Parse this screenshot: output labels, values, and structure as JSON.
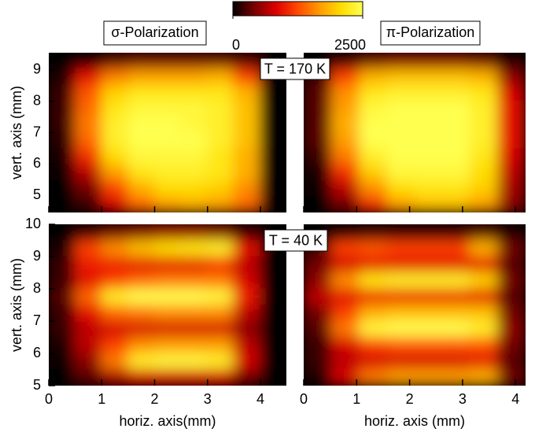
{
  "colorbar": {
    "clim": [
      0,
      2500
    ],
    "ticks": [
      0,
      2500
    ],
    "colors": [
      "#000000",
      "#7a0000",
      "#dd0000",
      "#ff4a00",
      "#ff9a00",
      "#ffdc00",
      "#ffff50"
    ]
  },
  "annotations": [
    "T = 170 K",
    "T = 40 K"
  ],
  "chart_data": [
    {
      "type": "heatmap",
      "title": "σ-Polarization",
      "ylabel": "vert. axis (mm)",
      "xlim": [
        0,
        4.49
      ],
      "ylim": [
        4.45,
        9.55
      ],
      "xticks": [
        0,
        1,
        2,
        3,
        4
      ],
      "yticks": [
        5,
        6,
        7,
        8,
        9
      ],
      "z": [
        [
          0,
          100,
          300,
          400,
          400,
          400,
          400,
          300,
          0
        ],
        [
          100,
          900,
          1500,
          1700,
          1700,
          1700,
          1800,
          1200,
          0
        ],
        [
          200,
          1300,
          2000,
          2200,
          2200,
          2200,
          2200,
          1800,
          0
        ],
        [
          200,
          1400,
          2200,
          2400,
          2400,
          2400,
          2300,
          1900,
          0
        ],
        [
          200,
          1500,
          2300,
          2500,
          2500,
          2400,
          2300,
          1900,
          0
        ],
        [
          150,
          1400,
          2300,
          2500,
          2500,
          2500,
          2300,
          1900,
          0
        ],
        [
          100,
          1100,
          2100,
          2400,
          2400,
          2400,
          2200,
          1800,
          0
        ],
        [
          50,
          700,
          1700,
          2200,
          2300,
          2300,
          2200,
          1800,
          0
        ],
        [
          0,
          400,
          1200,
          1800,
          2100,
          2100,
          2000,
          1600,
          0
        ],
        [
          0,
          200,
          800,
          1400,
          1700,
          1800,
          1700,
          1400,
          0
        ]
      ]
    },
    {
      "type": "heatmap",
      "title": "π-Polarization",
      "xlim": [
        0,
        4.19
      ],
      "ylim": [
        4.45,
        9.55
      ],
      "xticks": [
        0,
        1,
        2,
        3,
        4
      ],
      "z": [
        [
          0,
          200,
          400,
          500,
          500,
          500,
          400,
          100
        ],
        [
          200,
          1200,
          1800,
          1900,
          1900,
          1900,
          1800,
          500
        ],
        [
          300,
          1600,
          2200,
          2300,
          2300,
          2300,
          2200,
          800
        ],
        [
          300,
          1700,
          2400,
          2500,
          2500,
          2500,
          2300,
          900
        ],
        [
          300,
          1800,
          2500,
          2500,
          2500,
          2500,
          2300,
          900
        ],
        [
          300,
          1700,
          2500,
          2500,
          2500,
          2500,
          2300,
          900
        ],
        [
          200,
          1500,
          2300,
          2500,
          2500,
          2500,
          2200,
          800
        ],
        [
          100,
          1100,
          2000,
          2400,
          2400,
          2400,
          2100,
          700
        ],
        [
          50,
          700,
          1600,
          2100,
          2200,
          2200,
          2000,
          600
        ],
        [
          0,
          400,
          1100,
          1700,
          1900,
          1900,
          1700,
          500
        ]
      ]
    },
    {
      "type": "heatmap",
      "ylabel": "vert. axis (mm)",
      "xlabel": "horiz. axis(mm)",
      "xlim": [
        0,
        4.49
      ],
      "ylim": [
        5,
        10
      ],
      "xticks": [
        0,
        1,
        2,
        3,
        4
      ],
      "yticks": [
        5,
        6,
        7,
        8,
        9,
        10
      ],
      "z": [
        [
          0,
          200,
          400,
          500,
          600,
          600,
          500,
          200,
          0
        ],
        [
          100,
          1200,
          1600,
          1900,
          2100,
          2200,
          2300,
          900,
          0
        ],
        [
          200,
          1000,
          1000,
          900,
          900,
          900,
          1100,
          700,
          0
        ],
        [
          200,
          900,
          1200,
          1400,
          1500,
          1500,
          1500,
          800,
          0
        ],
        [
          300,
          1400,
          2300,
          2500,
          2500,
          2500,
          2400,
          1000,
          0
        ],
        [
          200,
          900,
          1400,
          1500,
          1600,
          1600,
          1600,
          700,
          0
        ],
        [
          200,
          700,
          800,
          800,
          800,
          800,
          800,
          500,
          0
        ],
        [
          100,
          700,
          1200,
          1600,
          1700,
          1700,
          1700,
          700,
          0
        ],
        [
          50,
          500,
          1500,
          2300,
          2400,
          2400,
          2300,
          800,
          0
        ],
        [
          0,
          300,
          600,
          800,
          800,
          800,
          800,
          400,
          0
        ]
      ]
    },
    {
      "type": "heatmap",
      "xlabel": "horiz. axis (mm)",
      "xlim": [
        0,
        4.19
      ],
      "ylim": [
        5,
        10
      ],
      "xticks": [
        0,
        1,
        2,
        3,
        4
      ],
      "z": [
        [
          0,
          100,
          200,
          200,
          200,
          200,
          300,
          100
        ],
        [
          200,
          1200,
          1300,
          1200,
          1200,
          1200,
          1800,
          400
        ],
        [
          400,
          800,
          900,
          900,
          900,
          900,
          900,
          300
        ],
        [
          500,
          1600,
          2200,
          2300,
          2300,
          2300,
          2000,
          400
        ],
        [
          700,
          900,
          1000,
          1000,
          1000,
          1000,
          900,
          300
        ],
        [
          400,
          1200,
          1800,
          1900,
          1900,
          1900,
          1900,
          400
        ],
        [
          300,
          1500,
          2400,
          2500,
          2500,
          2500,
          2300,
          500
        ],
        [
          200,
          800,
          1200,
          1300,
          1300,
          1300,
          1300,
          400
        ],
        [
          200,
          700,
          800,
          800,
          800,
          800,
          900,
          300
        ],
        [
          100,
          800,
          1500,
          1700,
          1700,
          1700,
          1800,
          400
        ]
      ]
    }
  ]
}
